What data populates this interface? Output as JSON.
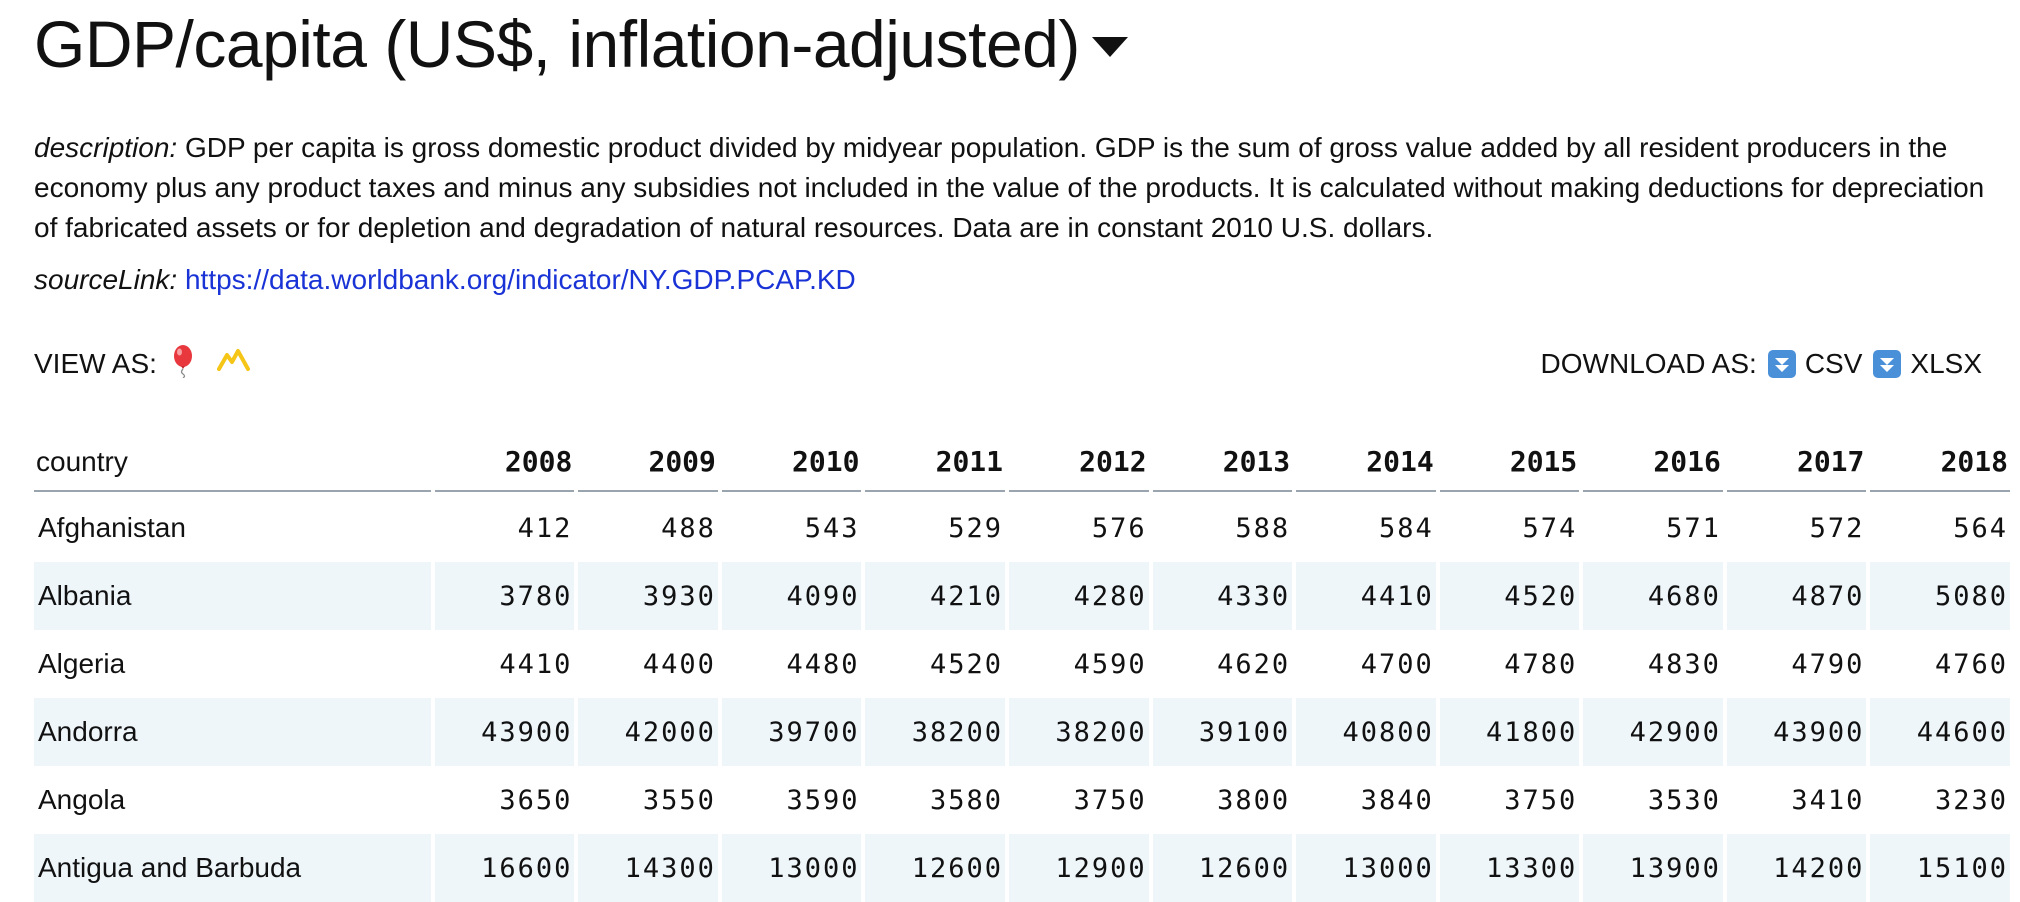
{
  "header": {
    "title": "GDP/capita (US$, inflation-adjusted)"
  },
  "description": {
    "label": "description:",
    "text": "GDP per capita is gross domestic product divided by midyear population. GDP is the sum of gross value added by all resident producers in the economy plus any product taxes and minus any subsidies not included in the value of the products. It is calculated without making deductions for depreciation of fabricated assets or for depletion and degradation of natural resources. Data are in constant 2010 U.S. dollars."
  },
  "source": {
    "label": "sourceLink:",
    "url": "https://data.worldbank.org/indicator/NY.GDP.PCAP.KD"
  },
  "view_as": {
    "label": "VIEW AS:",
    "options": [
      {
        "icon": "balloon-icon",
        "color": "#e8383d"
      },
      {
        "icon": "mountain-chart-icon",
        "color": "#f5c518"
      }
    ]
  },
  "download_as": {
    "label": "DOWNLOAD AS:",
    "options": [
      {
        "label": "CSV",
        "icon": "download-arrow-icon"
      },
      {
        "label": "XLSX",
        "icon": "download-arrow-icon"
      }
    ],
    "icon_color": "#4a90d9"
  },
  "table": {
    "country_header": "country",
    "years": [
      "2008",
      "2009",
      "2010",
      "2011",
      "2012",
      "2013",
      "2014",
      "2015",
      "2016",
      "2017",
      "2018"
    ],
    "rows": [
      {
        "country": "Afghanistan",
        "values": [
          "412",
          "488",
          "543",
          "529",
          "576",
          "588",
          "584",
          "574",
          "571",
          "572",
          "564"
        ]
      },
      {
        "country": "Albania",
        "values": [
          "3780",
          "3930",
          "4090",
          "4210",
          "4280",
          "4330",
          "4410",
          "4520",
          "4680",
          "4870",
          "5080"
        ]
      },
      {
        "country": "Algeria",
        "values": [
          "4410",
          "4400",
          "4480",
          "4520",
          "4590",
          "4620",
          "4700",
          "4780",
          "4830",
          "4790",
          "4760"
        ]
      },
      {
        "country": "Andorra",
        "values": [
          "43900",
          "42000",
          "39700",
          "38200",
          "38200",
          "39100",
          "40800",
          "41800",
          "42900",
          "43900",
          "44600"
        ]
      },
      {
        "country": "Angola",
        "values": [
          "3650",
          "3550",
          "3590",
          "3580",
          "3750",
          "3800",
          "3840",
          "3750",
          "3530",
          "3410",
          "3230"
        ]
      },
      {
        "country": "Antigua and Barbuda",
        "values": [
          "16600",
          "14300",
          "13000",
          "12600",
          "12900",
          "12600",
          "13000",
          "13300",
          "13900",
          "14200",
          "15100"
        ]
      }
    ],
    "alt_row_color": "#eef6fa"
  }
}
